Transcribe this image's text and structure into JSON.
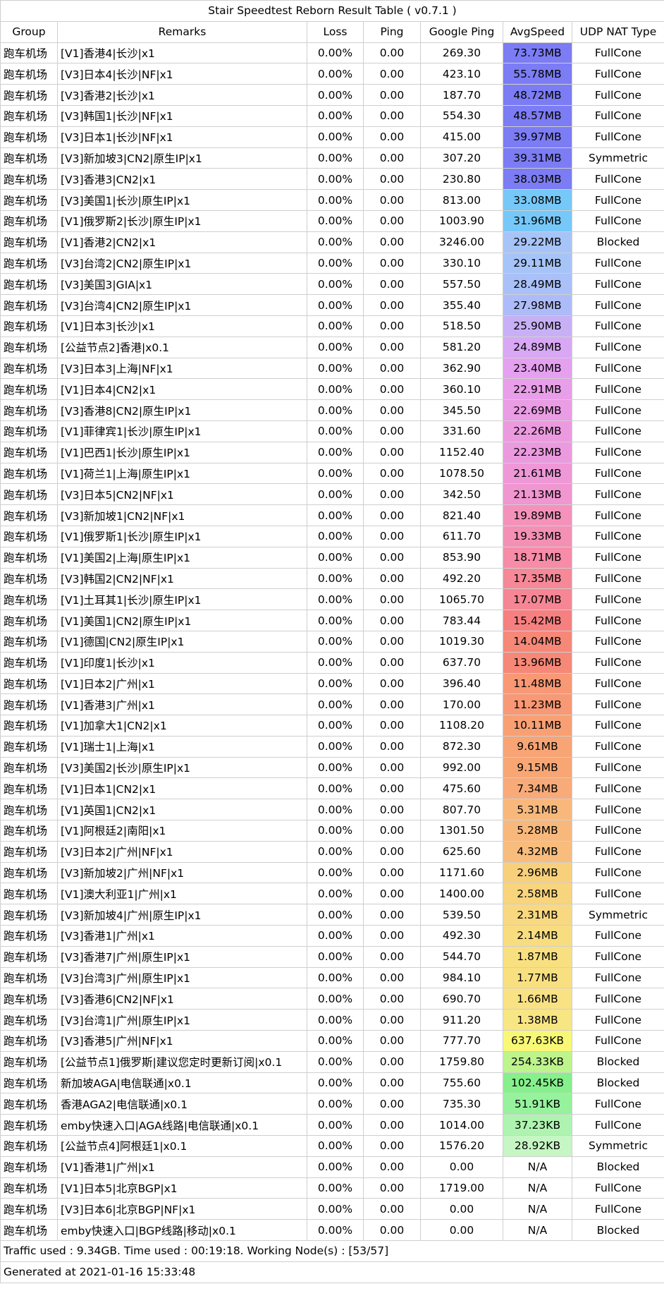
{
  "title": "Stair Speedtest Reborn Result Table ( v0.7.1 )",
  "columns": [
    "Group",
    "Remarks",
    "Loss",
    "Ping",
    "Google Ping",
    "AvgSpeed",
    "UDP NAT Type"
  ],
  "rows": [
    {
      "group": "跑车机场",
      "remarks": "[V1]香港4|长沙|x1",
      "loss": "0.00%",
      "ping": "0.00",
      "gping": "269.30",
      "speed": "73.73MB",
      "nat": "FullCone",
      "color": "#7c7cf4"
    },
    {
      "group": "跑车机场",
      "remarks": "[V3]日本4|长沙|NF|x1",
      "loss": "0.00%",
      "ping": "0.00",
      "gping": "423.10",
      "speed": "55.78MB",
      "nat": "FullCone",
      "color": "#7c7cf4"
    },
    {
      "group": "跑车机场",
      "remarks": "[V3]香港2|长沙|x1",
      "loss": "0.00%",
      "ping": "0.00",
      "gping": "187.70",
      "speed": "48.72MB",
      "nat": "FullCone",
      "color": "#7c7cf4"
    },
    {
      "group": "跑车机场",
      "remarks": "[V3]韩国1|长沙|NF|x1",
      "loss": "0.00%",
      "ping": "0.00",
      "gping": "554.30",
      "speed": "48.57MB",
      "nat": "FullCone",
      "color": "#7c7cf4"
    },
    {
      "group": "跑车机场",
      "remarks": "[V3]日本1|长沙|NF|x1",
      "loss": "0.00%",
      "ping": "0.00",
      "gping": "415.00",
      "speed": "39.97MB",
      "nat": "FullCone",
      "color": "#7c7cf4"
    },
    {
      "group": "跑车机场",
      "remarks": "[V3]新加坡3|CN2|原生IP|x1",
      "loss": "0.00%",
      "ping": "0.00",
      "gping": "307.20",
      "speed": "39.31MB",
      "nat": "Symmetric",
      "color": "#7c7cf4"
    },
    {
      "group": "跑车机场",
      "remarks": "[V3]香港3|CN2|x1",
      "loss": "0.00%",
      "ping": "0.00",
      "gping": "230.80",
      "speed": "38.03MB",
      "nat": "FullCone",
      "color": "#7c7cf4"
    },
    {
      "group": "跑车机场",
      "remarks": "[V3]美国1|长沙|原生IP|x1",
      "loss": "0.00%",
      "ping": "0.00",
      "gping": "813.00",
      "speed": "33.08MB",
      "nat": "FullCone",
      "color": "#76c8f8"
    },
    {
      "group": "跑车机场",
      "remarks": "[V1]俄罗斯2|长沙|原生IP|x1",
      "loss": "0.00%",
      "ping": "0.00",
      "gping": "1003.90",
      "speed": "31.96MB",
      "nat": "FullCone",
      "color": "#76c8f8"
    },
    {
      "group": "跑车机场",
      "remarks": "[V1]香港2|CN2|x1",
      "loss": "0.00%",
      "ping": "0.00",
      "gping": "3246.00",
      "speed": "29.22MB",
      "nat": "Blocked",
      "color": "#a6c4f8"
    },
    {
      "group": "跑车机场",
      "remarks": "[V3]台湾2|CN2|原生IP|x1",
      "loss": "0.00%",
      "ping": "0.00",
      "gping": "330.10",
      "speed": "29.11MB",
      "nat": "FullCone",
      "color": "#a6c4f8"
    },
    {
      "group": "跑车机场",
      "remarks": "[V3]美国3|GIA|x1",
      "loss": "0.00%",
      "ping": "0.00",
      "gping": "557.50",
      "speed": "28.49MB",
      "nat": "FullCone",
      "color": "#a9c0f8"
    },
    {
      "group": "跑车机场",
      "remarks": "[V3]台湾4|CN2|原生IP|x1",
      "loss": "0.00%",
      "ping": "0.00",
      "gping": "355.40",
      "speed": "27.98MB",
      "nat": "FullCone",
      "color": "#adbcf8"
    },
    {
      "group": "跑车机场",
      "remarks": "[V1]日本3|长沙|x1",
      "loss": "0.00%",
      "ping": "0.00",
      "gping": "518.50",
      "speed": "25.90MB",
      "nat": "FullCone",
      "color": "#c8b0f6"
    },
    {
      "group": "跑车机场",
      "remarks": "[公益节点2]香港|x0.1",
      "loss": "0.00%",
      "ping": "0.00",
      "gping": "581.20",
      "speed": "24.89MB",
      "nat": "FullCone",
      "color": "#d8a8f4"
    },
    {
      "group": "跑车机场",
      "remarks": "[V3]日本3|上海|NF|x1",
      "loss": "0.00%",
      "ping": "0.00",
      "gping": "362.90",
      "speed": "23.40MB",
      "nat": "FullCone",
      "color": "#e6a0f0"
    },
    {
      "group": "跑车机场",
      "remarks": "[V1]日本4|CN2|x1",
      "loss": "0.00%",
      "ping": "0.00",
      "gping": "360.10",
      "speed": "22.91MB",
      "nat": "FullCone",
      "color": "#e89ee8"
    },
    {
      "group": "跑车机场",
      "remarks": "[V3]香港8|CN2|原生IP|x1",
      "loss": "0.00%",
      "ping": "0.00",
      "gping": "345.50",
      "speed": "22.69MB",
      "nat": "FullCone",
      "color": "#ea9ce4"
    },
    {
      "group": "跑车机场",
      "remarks": "[V1]菲律宾1|长沙|原生IP|x1",
      "loss": "0.00%",
      "ping": "0.00",
      "gping": "331.60",
      "speed": "22.26MB",
      "nat": "FullCone",
      "color": "#ec9ae0"
    },
    {
      "group": "跑车机场",
      "remarks": "[V1]巴西1|长沙|原生IP|x1",
      "loss": "0.00%",
      "ping": "0.00",
      "gping": "1152.40",
      "speed": "22.23MB",
      "nat": "FullCone",
      "color": "#ec9ae0"
    },
    {
      "group": "跑车机场",
      "remarks": "[V1]荷兰1|上海|原生IP|x1",
      "loss": "0.00%",
      "ping": "0.00",
      "gping": "1078.50",
      "speed": "21.61MB",
      "nat": "FullCone",
      "color": "#ee98d8"
    },
    {
      "group": "跑车机场",
      "remarks": "[V3]日本5|CN2|NF|x1",
      "loss": "0.00%",
      "ping": "0.00",
      "gping": "342.50",
      "speed": "21.13MB",
      "nat": "FullCone",
      "color": "#f096d0"
    },
    {
      "group": "跑车机场",
      "remarks": "[V3]新加坡1|CN2|NF|x1",
      "loss": "0.00%",
      "ping": "0.00",
      "gping": "821.40",
      "speed": "19.89MB",
      "nat": "FullCone",
      "color": "#f492bc"
    },
    {
      "group": "跑车机场",
      "remarks": "[V1]俄罗斯1|长沙|原生IP|x1",
      "loss": "0.00%",
      "ping": "0.00",
      "gping": "611.70",
      "speed": "19.33MB",
      "nat": "FullCone",
      "color": "#f490b4"
    },
    {
      "group": "跑车机场",
      "remarks": "[V1]美国2|上海|原生IP|x1",
      "loss": "0.00%",
      "ping": "0.00",
      "gping": "853.90",
      "speed": "18.71MB",
      "nat": "FullCone",
      "color": "#f68ca8"
    },
    {
      "group": "跑车机场",
      "remarks": "[V3]韩国2|CN2|NF|x1",
      "loss": "0.00%",
      "ping": "0.00",
      "gping": "492.20",
      "speed": "17.35MB",
      "nat": "FullCone",
      "color": "#f68898"
    },
    {
      "group": "跑车机场",
      "remarks": "[V1]土耳其1|长沙|原生IP|x1",
      "loss": "0.00%",
      "ping": "0.00",
      "gping": "1065.70",
      "speed": "17.07MB",
      "nat": "FullCone",
      "color": "#f68694"
    },
    {
      "group": "跑车机场",
      "remarks": "[V1]美国1|CN2|原生IP|x1",
      "loss": "0.00%",
      "ping": "0.00",
      "gping": "783.44",
      "speed": "15.42MB",
      "nat": "FullCone",
      "color": "#f68080"
    },
    {
      "group": "跑车机场",
      "remarks": "[V1]德国|CN2|原生IP|x1",
      "loss": "0.00%",
      "ping": "0.00",
      "gping": "1019.30",
      "speed": "14.04MB",
      "nat": "FullCone",
      "color": "#f68878"
    },
    {
      "group": "跑车机场",
      "remarks": "[V1]印度1|长沙|x1",
      "loss": "0.00%",
      "ping": "0.00",
      "gping": "637.70",
      "speed": "13.96MB",
      "nat": "FullCone",
      "color": "#f68878"
    },
    {
      "group": "跑车机场",
      "remarks": "[V1]日本2|广州|x1",
      "loss": "0.00%",
      "ping": "0.00",
      "gping": "396.40",
      "speed": "11.48MB",
      "nat": "FullCone",
      "color": "#f89874"
    },
    {
      "group": "跑车机场",
      "remarks": "[V1]香港3|广州|x1",
      "loss": "0.00%",
      "ping": "0.00",
      "gping": "170.00",
      "speed": "11.23MB",
      "nat": "FullCone",
      "color": "#f89874"
    },
    {
      "group": "跑车机场",
      "remarks": "[V1]加拿大1|CN2|x1",
      "loss": "0.00%",
      "ping": "0.00",
      "gping": "1108.20",
      "speed": "10.11MB",
      "nat": "FullCone",
      "color": "#f8a074"
    },
    {
      "group": "跑车机场",
      "remarks": "[V1]瑞士1|上海|x1",
      "loss": "0.00%",
      "ping": "0.00",
      "gping": "872.30",
      "speed": "9.61MB",
      "nat": "FullCone",
      "color": "#f8a474"
    },
    {
      "group": "跑车机场",
      "remarks": "[V3]美国2|长沙|原生IP|x1",
      "loss": "0.00%",
      "ping": "0.00",
      "gping": "992.00",
      "speed": "9.15MB",
      "nat": "FullCone",
      "color": "#f8a674"
    },
    {
      "group": "跑车机场",
      "remarks": "[V1]日本1|CN2|x1",
      "loss": "0.00%",
      "ping": "0.00",
      "gping": "475.60",
      "speed": "7.34MB",
      "nat": "FullCone",
      "color": "#f8aa78"
    },
    {
      "group": "跑车机场",
      "remarks": "[V1]英国1|CN2|x1",
      "loss": "0.00%",
      "ping": "0.00",
      "gping": "807.70",
      "speed": "5.31MB",
      "nat": "FullCone",
      "color": "#f8b87c"
    },
    {
      "group": "跑车机场",
      "remarks": "[V1]阿根廷2|南阳|x1",
      "loss": "0.00%",
      "ping": "0.00",
      "gping": "1301.50",
      "speed": "5.28MB",
      "nat": "FullCone",
      "color": "#f8b87c"
    },
    {
      "group": "跑车机场",
      "remarks": "[V3]日本2|广州|NF|x1",
      "loss": "0.00%",
      "ping": "0.00",
      "gping": "625.60",
      "speed": "4.32MB",
      "nat": "FullCone",
      "color": "#f8bc7c"
    },
    {
      "group": "跑车机场",
      "remarks": "[V3]新加坡2|广州|NF|x1",
      "loss": "0.00%",
      "ping": "0.00",
      "gping": "1171.60",
      "speed": "2.96MB",
      "nat": "FullCone",
      "color": "#f8d07c"
    },
    {
      "group": "跑车机场",
      "remarks": "[V1]澳大利亚1|广州|x1",
      "loss": "0.00%",
      "ping": "0.00",
      "gping": "1400.00",
      "speed": "2.58MB",
      "nat": "FullCone",
      "color": "#f8d47c"
    },
    {
      "group": "跑车机场",
      "remarks": "[V3]新加坡4|广州|原生IP|x1",
      "loss": "0.00%",
      "ping": "0.00",
      "gping": "539.50",
      "speed": "2.31MB",
      "nat": "Symmetric",
      "color": "#f8d880"
    },
    {
      "group": "跑车机场",
      "remarks": "[V3]香港1|广州|x1",
      "loss": "0.00%",
      "ping": "0.00",
      "gping": "492.30",
      "speed": "2.14MB",
      "nat": "FullCone",
      "color": "#f8dc80"
    },
    {
      "group": "跑车机场",
      "remarks": "[V3]香港7|广州|原生IP|x1",
      "loss": "0.00%",
      "ping": "0.00",
      "gping": "544.70",
      "speed": "1.87MB",
      "nat": "FullCone",
      "color": "#f8e080"
    },
    {
      "group": "跑车机场",
      "remarks": "[V3]台湾3|广州|原生IP|x1",
      "loss": "0.00%",
      "ping": "0.00",
      "gping": "984.10",
      "speed": "1.77MB",
      "nat": "FullCone",
      "color": "#f8e080"
    },
    {
      "group": "跑车机场",
      "remarks": "[V3]香港6|CN2|NF|x1",
      "loss": "0.00%",
      "ping": "0.00",
      "gping": "690.70",
      "speed": "1.66MB",
      "nat": "FullCone",
      "color": "#f8e284"
    },
    {
      "group": "跑车机场",
      "remarks": "[V3]台湾1|广州|原生IP|x1",
      "loss": "0.00%",
      "ping": "0.00",
      "gping": "911.20",
      "speed": "1.38MB",
      "nat": "FullCone",
      "color": "#f8e684"
    },
    {
      "group": "跑车机场",
      "remarks": "[V3]香港5|广州|NF|x1",
      "loss": "0.00%",
      "ping": "0.00",
      "gping": "777.70",
      "speed": "637.63KB",
      "nat": "FullCone",
      "color": "#f8f876"
    },
    {
      "group": "跑车机场",
      "remarks": "[公益节点1]俄罗斯|建议您定时更新订阅|x0.1",
      "loss": "0.00%",
      "ping": "0.00",
      "gping": "1759.80",
      "speed": "254.33KB",
      "nat": "Blocked",
      "color": "#bef48c"
    },
    {
      "group": "跑车机场",
      "remarks": "新加坡AGA|电信联通|x0.1",
      "loss": "0.00%",
      "ping": "0.00",
      "gping": "755.60",
      "speed": "102.45KB",
      "nat": "Blocked",
      "color": "#86f08c"
    },
    {
      "group": "跑车机场",
      "remarks": "香港AGA2|电信联通|x0.1",
      "loss": "0.00%",
      "ping": "0.00",
      "gping": "735.30",
      "speed": "51.91KB",
      "nat": "FullCone",
      "color": "#96f29c"
    },
    {
      "group": "跑车机场",
      "remarks": "emby快速入口|AGA线路|电信联通|x0.1",
      "loss": "0.00%",
      "ping": "0.00",
      "gping": "1014.00",
      "speed": "37.23KB",
      "nat": "FullCone",
      "color": "#aef4b0"
    },
    {
      "group": "跑车机场",
      "remarks": "[公益节点4]阿根廷1|x0.1",
      "loss": "0.00%",
      "ping": "0.00",
      "gping": "1576.20",
      "speed": "28.92KB",
      "nat": "Symmetric",
      "color": "#c6f6c4"
    },
    {
      "group": "跑车机场",
      "remarks": "[V1]香港1|广州|x1",
      "loss": "0.00%",
      "ping": "0.00",
      "gping": "0.00",
      "speed": "N/A",
      "nat": "Blocked",
      "color": "#ffffff"
    },
    {
      "group": "跑车机场",
      "remarks": "[V1]日本5|北京BGP|x1",
      "loss": "0.00%",
      "ping": "0.00",
      "gping": "1719.00",
      "speed": "N/A",
      "nat": "FullCone",
      "color": "#ffffff"
    },
    {
      "group": "跑车机场",
      "remarks": "[V3]日本6|北京BGP|NF|x1",
      "loss": "0.00%",
      "ping": "0.00",
      "gping": "0.00",
      "speed": "N/A",
      "nat": "FullCone",
      "color": "#ffffff"
    },
    {
      "group": "跑车机场",
      "remarks": "emby快速入口|BGP线路|移动|x0.1",
      "loss": "0.00%",
      "ping": "0.00",
      "gping": "0.00",
      "speed": "N/A",
      "nat": "Blocked",
      "color": "#ffffff"
    }
  ],
  "footer": {
    "traffic": "Traffic used : 9.34GB. Time used : 00:19:18. Working Node(s) : [53/57]",
    "generated": "Generated at 2021-01-16 15:33:48"
  }
}
